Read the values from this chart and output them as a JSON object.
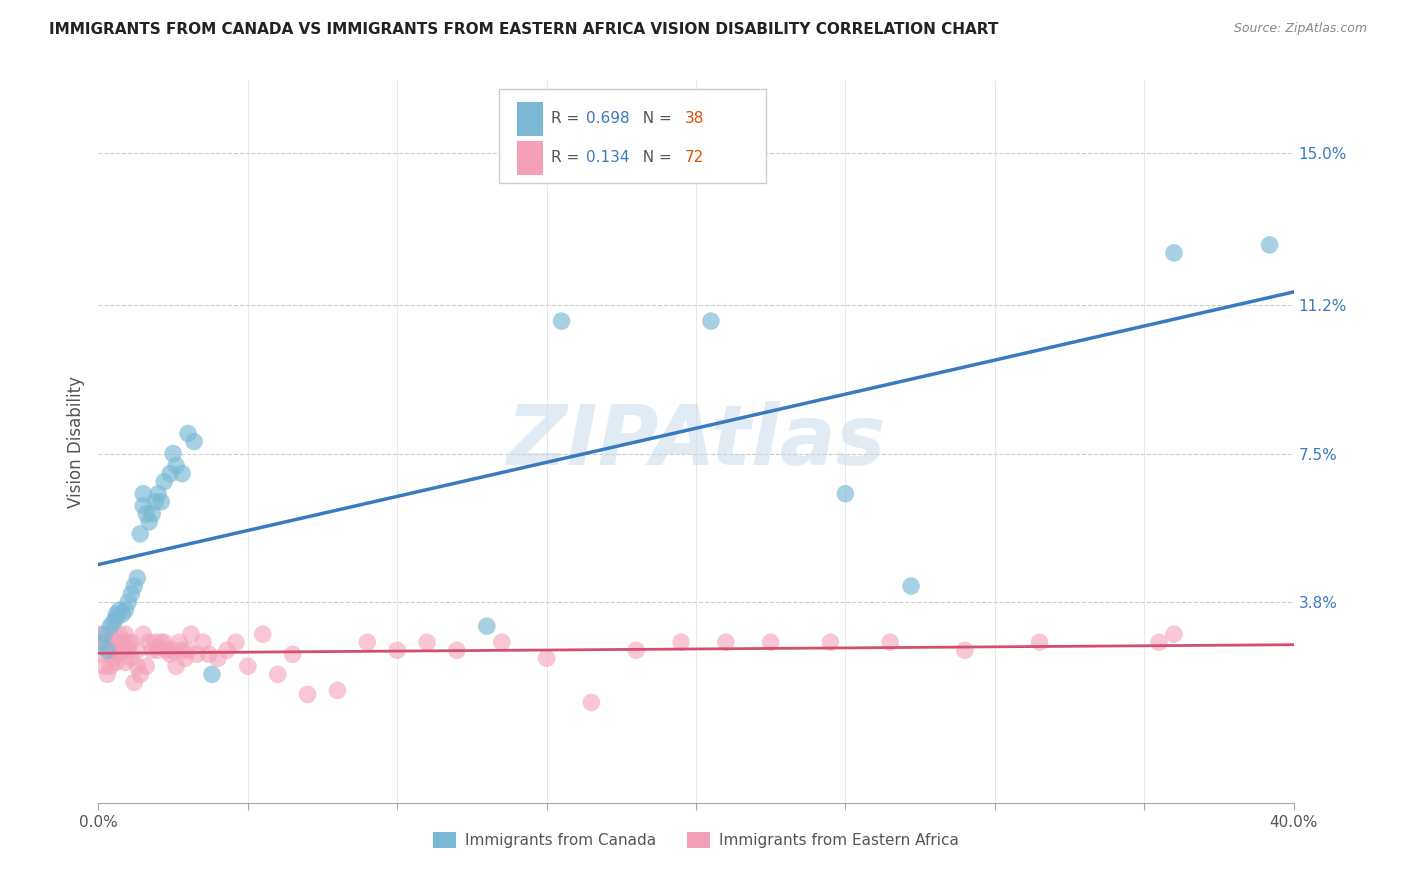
{
  "title": "IMMIGRANTS FROM CANADA VS IMMIGRANTS FROM EASTERN AFRICA VISION DISABILITY CORRELATION CHART",
  "source": "Source: ZipAtlas.com",
  "ylabel": "Vision Disability",
  "yticks": [
    0.0,
    0.038,
    0.075,
    0.112,
    0.15
  ],
  "ytick_labels": [
    "",
    "3.8%",
    "7.5%",
    "11.2%",
    "15.0%"
  ],
  "xlim": [
    0.0,
    0.4
  ],
  "ylim": [
    -0.012,
    0.168
  ],
  "series1_label": "Immigrants from Canada",
  "series1_color": "#7ab8d4",
  "series1_line_color": "#3a7abf",
  "series1_R": "0.698",
  "series1_N": "38",
  "series2_label": "Immigrants from Eastern Africa",
  "series2_color": "#f4a0b8",
  "series2_line_color": "#d44e6e",
  "series2_R": "0.134",
  "series2_N": "72",
  "watermark": "ZIPAtlas",
  "blue_x": [
    0.001,
    0.002,
    0.003,
    0.004,
    0.005,
    0.006,
    0.006,
    0.007,
    0.008,
    0.009,
    0.01,
    0.011,
    0.012,
    0.013,
    0.014,
    0.015,
    0.015,
    0.016,
    0.017,
    0.018,
    0.019,
    0.02,
    0.021,
    0.022,
    0.024,
    0.025,
    0.026,
    0.028,
    0.03,
    0.032,
    0.038,
    0.13,
    0.155,
    0.205,
    0.25,
    0.272,
    0.36,
    0.392
  ],
  "blue_y": [
    0.028,
    0.03,
    0.026,
    0.032,
    0.033,
    0.034,
    0.035,
    0.036,
    0.035,
    0.036,
    0.038,
    0.04,
    0.042,
    0.044,
    0.055,
    0.062,
    0.065,
    0.06,
    0.058,
    0.06,
    0.063,
    0.065,
    0.063,
    0.068,
    0.07,
    0.075,
    0.072,
    0.07,
    0.08,
    0.078,
    0.02,
    0.032,
    0.108,
    0.108,
    0.065,
    0.042,
    0.125,
    0.127
  ],
  "pink_x": [
    0.001,
    0.001,
    0.002,
    0.002,
    0.003,
    0.003,
    0.004,
    0.004,
    0.005,
    0.005,
    0.006,
    0.006,
    0.007,
    0.007,
    0.008,
    0.008,
    0.009,
    0.009,
    0.01,
    0.01,
    0.011,
    0.011,
    0.012,
    0.013,
    0.013,
    0.014,
    0.015,
    0.016,
    0.017,
    0.018,
    0.019,
    0.02,
    0.021,
    0.022,
    0.023,
    0.024,
    0.025,
    0.026,
    0.027,
    0.028,
    0.029,
    0.03,
    0.031,
    0.033,
    0.035,
    0.037,
    0.04,
    0.043,
    0.046,
    0.05,
    0.055,
    0.06,
    0.065,
    0.07,
    0.08,
    0.09,
    0.1,
    0.11,
    0.12,
    0.135,
    0.15,
    0.165,
    0.18,
    0.195,
    0.21,
    0.225,
    0.245,
    0.265,
    0.29,
    0.315,
    0.355,
    0.36
  ],
  "pink_y": [
    0.025,
    0.03,
    0.022,
    0.028,
    0.02,
    0.028,
    0.022,
    0.03,
    0.024,
    0.026,
    0.023,
    0.028,
    0.025,
    0.03,
    0.026,
    0.028,
    0.023,
    0.03,
    0.026,
    0.028,
    0.024,
    0.028,
    0.018,
    0.022,
    0.026,
    0.02,
    0.03,
    0.022,
    0.028,
    0.026,
    0.028,
    0.026,
    0.028,
    0.028,
    0.026,
    0.025,
    0.026,
    0.022,
    0.028,
    0.026,
    0.024,
    0.026,
    0.03,
    0.025,
    0.028,
    0.025,
    0.024,
    0.026,
    0.028,
    0.022,
    0.03,
    0.02,
    0.025,
    0.015,
    0.016,
    0.028,
    0.026,
    0.028,
    0.026,
    0.028,
    0.024,
    0.013,
    0.026,
    0.028,
    0.028,
    0.028,
    0.028,
    0.028,
    0.026,
    0.028,
    0.028,
    0.03
  ]
}
